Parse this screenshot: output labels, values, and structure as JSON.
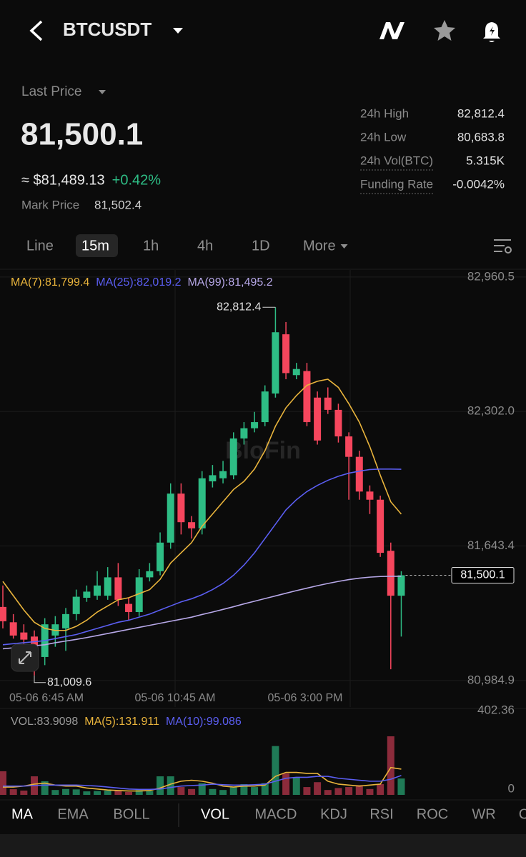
{
  "header": {
    "symbol": "BTCUSDT"
  },
  "price": {
    "label": "Last Price",
    "last": "81,500.1",
    "usd": "≈ $81,489.13",
    "change": "+0.42%",
    "mark_label": "Mark Price",
    "mark": "81,502.4"
  },
  "stats": [
    {
      "label": "24h High",
      "value": "82,812.4"
    },
    {
      "label": "24h Low",
      "value": "80,683.8"
    },
    {
      "label": "24h Vol(BTC)",
      "value": "5.315K"
    },
    {
      "label": "Funding Rate",
      "value": "-0.0042%"
    }
  ],
  "timeframes": {
    "items": [
      "Line",
      "15m",
      "1h",
      "4h",
      "1D",
      "More"
    ],
    "selected": 1
  },
  "watermark": "BloFin",
  "chart_data": [
    {
      "type": "candlestick",
      "up_color": "#2ebd85",
      "down_color": "#f6465d",
      "grid": true,
      "ohlc": {
        "open": [
          81345,
          81270,
          81220,
          81200,
          81100,
          81205,
          81240,
          81310,
          81390,
          81400,
          81400,
          81490,
          81360,
          81320,
          81490,
          81520,
          81660,
          81900,
          81760,
          81730,
          81960,
          81975,
          81990,
          82170,
          82220,
          82250,
          82390,
          82680,
          82480,
          82500,
          82370,
          82370,
          82310,
          82180,
          82080,
          81910,
          81870,
          81620,
          81400
        ],
        "high": [
          81450,
          81310,
          81260,
          81230,
          81290,
          81300,
          81340,
          81430,
          81450,
          81520,
          81540,
          81560,
          81390,
          81530,
          81560,
          81710,
          81950,
          81950,
          81790,
          82010,
          82040,
          82060,
          82200,
          82250,
          82300,
          82430,
          82812.4,
          82740,
          82540,
          82540,
          82400,
          82420,
          82340,
          82200,
          82110,
          81940,
          81890,
          81660,
          81520
        ],
        "low": [
          81240,
          81190,
          81160,
          81009.6,
          81060,
          81150,
          81130,
          81280,
          81370,
          81380,
          81380,
          81350,
          81280,
          81300,
          81470,
          81500,
          81630,
          81700,
          81680,
          81700,
          81930,
          81950,
          81970,
          82140,
          82200,
          82230,
          82370,
          82460,
          82460,
          82230,
          82140,
          82290,
          82150,
          81870,
          81870,
          81800,
          81590,
          81040,
          81200
        ],
        "close": [
          81275,
          81205,
          81185,
          81100,
          81260,
          81260,
          81310,
          81395,
          81420,
          81450,
          81490,
          81380,
          81320,
          81490,
          81520,
          81660,
          81900,
          81760,
          81730,
          81975,
          81990,
          82010,
          82170,
          82220,
          82250,
          82400,
          82690,
          82490,
          82510,
          82250,
          82160,
          82310,
          82180,
          82080,
          81910,
          81870,
          81610,
          81400,
          81500.1
        ]
      },
      "series": [
        {
          "name": "MA(7):81,799.4",
          "color": "#e9b43c",
          "values": [
            81470,
            81400,
            81330,
            81270,
            81240,
            81230,
            81230,
            81250,
            81280,
            81320,
            81350,
            81380,
            81390,
            81410,
            81430,
            81480,
            81560,
            81610,
            81660,
            81740,
            81800,
            81860,
            81920,
            81960,
            82020,
            82110,
            82230,
            82320,
            82380,
            82430,
            82450,
            82460,
            82420,
            82340,
            82250,
            82130,
            81990,
            81860,
            81799.4
          ]
        },
        {
          "name": "MA(25):82,019.2",
          "color": "#5b5ef2",
          "values": [
            81160,
            81165,
            81170,
            81175,
            81180,
            81190,
            81200,
            81210,
            81225,
            81240,
            81255,
            81270,
            81280,
            81295,
            81310,
            81330,
            81350,
            81370,
            81385,
            81405,
            81430,
            81460,
            81500,
            81550,
            81610,
            81680,
            81750,
            81820,
            81870,
            81910,
            81940,
            81965,
            81985,
            82000,
            82010,
            82018,
            82020,
            82020,
            82019.2
          ]
        },
        {
          "name": "MA(99):81,495.2",
          "color": "#b7a8e8",
          "values": [
            81140,
            81145,
            81150,
            81155,
            81160,
            81170,
            81178,
            81186,
            81195,
            81205,
            81215,
            81225,
            81235,
            81245,
            81255,
            81265,
            81275,
            81285,
            81295,
            81308,
            81320,
            81333,
            81346,
            81360,
            81373,
            81386,
            81399,
            81412,
            81425,
            81437,
            81449,
            81460,
            81470,
            81479,
            81486,
            81491,
            81494,
            81495,
            81495.2
          ]
        }
      ],
      "ylim": [
        80855,
        82995
      ],
      "yticks": [
        {
          "value": 80984.9,
          "label": "80,984.9"
        },
        {
          "value": 81643.4,
          "label": "81,643.4"
        },
        {
          "value": 82302.0,
          "label": "82,302.0"
        },
        {
          "value": 82960.5,
          "label": "82,960.5"
        }
      ],
      "x_labels": [
        "05-06 6:45 AM",
        "05-06 10:45 AM",
        "05-06 3:00 PM"
      ],
      "high_label": "82,812.4",
      "low_label": "81,009.6",
      "last_label": "81,500.1"
    },
    {
      "type": "bar",
      "up_color": "#1f7a56",
      "down_color": "#8c2b3b",
      "series": [
        {
          "name": "VOL:83.9098",
          "color": "#9a9a9a",
          "values": [
            121,
            29,
            22,
            95,
            70,
            25,
            30,
            28,
            18,
            20,
            22,
            20,
            15,
            25,
            20,
            95,
            95,
            40,
            30,
            60,
            30,
            25,
            40,
            55,
            40,
            60,
            250,
            110,
            90,
            40,
            65,
            25,
            35,
            40,
            50,
            30,
            55,
            300,
            83.9098
          ]
        },
        {
          "name": "MA(5):131.911",
          "color": "#e9b43c",
          "values": [
            40,
            40,
            45,
            55,
            60,
            50,
            45,
            45,
            35,
            30,
            25,
            22,
            20,
            20,
            22,
            35,
            55,
            70,
            75,
            70,
            60,
            45,
            40,
            45,
            45,
            50,
            95,
            115,
            115,
            110,
            110,
            70,
            55,
            50,
            45,
            50,
            55,
            140,
            131.911
          ]
        },
        {
          "name": "MA(10):99.086",
          "color": "#5b5ef2",
          "values": [
            45,
            45,
            45,
            48,
            50,
            50,
            50,
            50,
            48,
            45,
            40,
            35,
            30,
            28,
            28,
            30,
            38,
            45,
            48,
            50,
            55,
            52,
            50,
            50,
            52,
            55,
            70,
            85,
            90,
            90,
            95,
            95,
            85,
            80,
            75,
            70,
            70,
            80,
            99.086
          ]
        }
      ],
      "ylim": [
        0,
        402.36
      ],
      "yticks": [
        0,
        402.36
      ]
    }
  ],
  "indicator_tabs": {
    "main": [
      "MA",
      "EMA",
      "BOLL"
    ],
    "sub": [
      "VOL",
      "MACD",
      "KDJ",
      "RSI",
      "ROC",
      "WR",
      "C"
    ]
  }
}
